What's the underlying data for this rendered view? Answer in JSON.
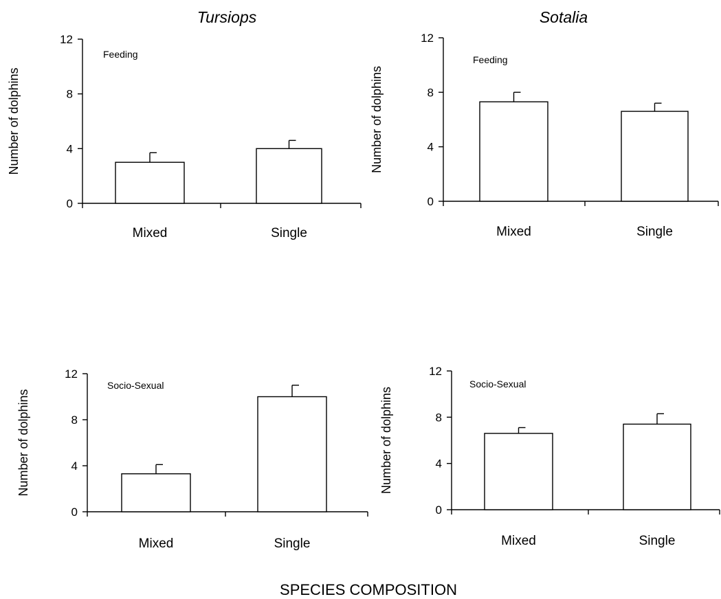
{
  "figure": {
    "column_titles": [
      "Tursiops",
      "Sotalia"
    ],
    "footer_label": "SPECIES COMPOSITION"
  },
  "chart_data": [
    {
      "type": "bar",
      "column": "Tursiops",
      "panel_label": "Feeding",
      "ylabel": "Number of dolphins",
      "categories": [
        "Mixed",
        "Single"
      ],
      "values": [
        3.0,
        4.0
      ],
      "error_upper": [
        3.7,
        4.6
      ],
      "ylim": [
        0,
        12
      ],
      "yticks": [
        0,
        4,
        8,
        12
      ],
      "grid": false,
      "bar_color": "#ffffff"
    },
    {
      "type": "bar",
      "column": "Sotalia",
      "panel_label": "Feeding",
      "ylabel": "Number of dolphins",
      "categories": [
        "Mixed",
        "Single"
      ],
      "values": [
        7.3,
        6.6
      ],
      "error_upper": [
        8.0,
        7.2
      ],
      "ylim": [
        0,
        12
      ],
      "yticks": [
        0,
        4,
        8,
        12
      ],
      "grid": false,
      "bar_color": "#ffffff"
    },
    {
      "type": "bar",
      "column": "Tursiops",
      "panel_label": "Socio-Sexual",
      "ylabel": "Number of dolphins",
      "categories": [
        "Mixed",
        "Single"
      ],
      "values": [
        3.3,
        10.0
      ],
      "error_upper": [
        4.1,
        11.0
      ],
      "ylim": [
        0,
        12
      ],
      "yticks": [
        0,
        4,
        8,
        12
      ],
      "grid": false,
      "bar_color": "#ffffff"
    },
    {
      "type": "bar",
      "column": "Sotalia",
      "panel_label": "Socio-Sexual",
      "ylabel": "Number of dolphins",
      "categories": [
        "Mixed",
        "Single"
      ],
      "values": [
        6.6,
        7.4
      ],
      "error_upper": [
        7.1,
        8.3
      ],
      "ylim": [
        0,
        12
      ],
      "yticks": [
        0,
        4,
        8,
        12
      ],
      "grid": false,
      "bar_color": "#ffffff"
    }
  ]
}
